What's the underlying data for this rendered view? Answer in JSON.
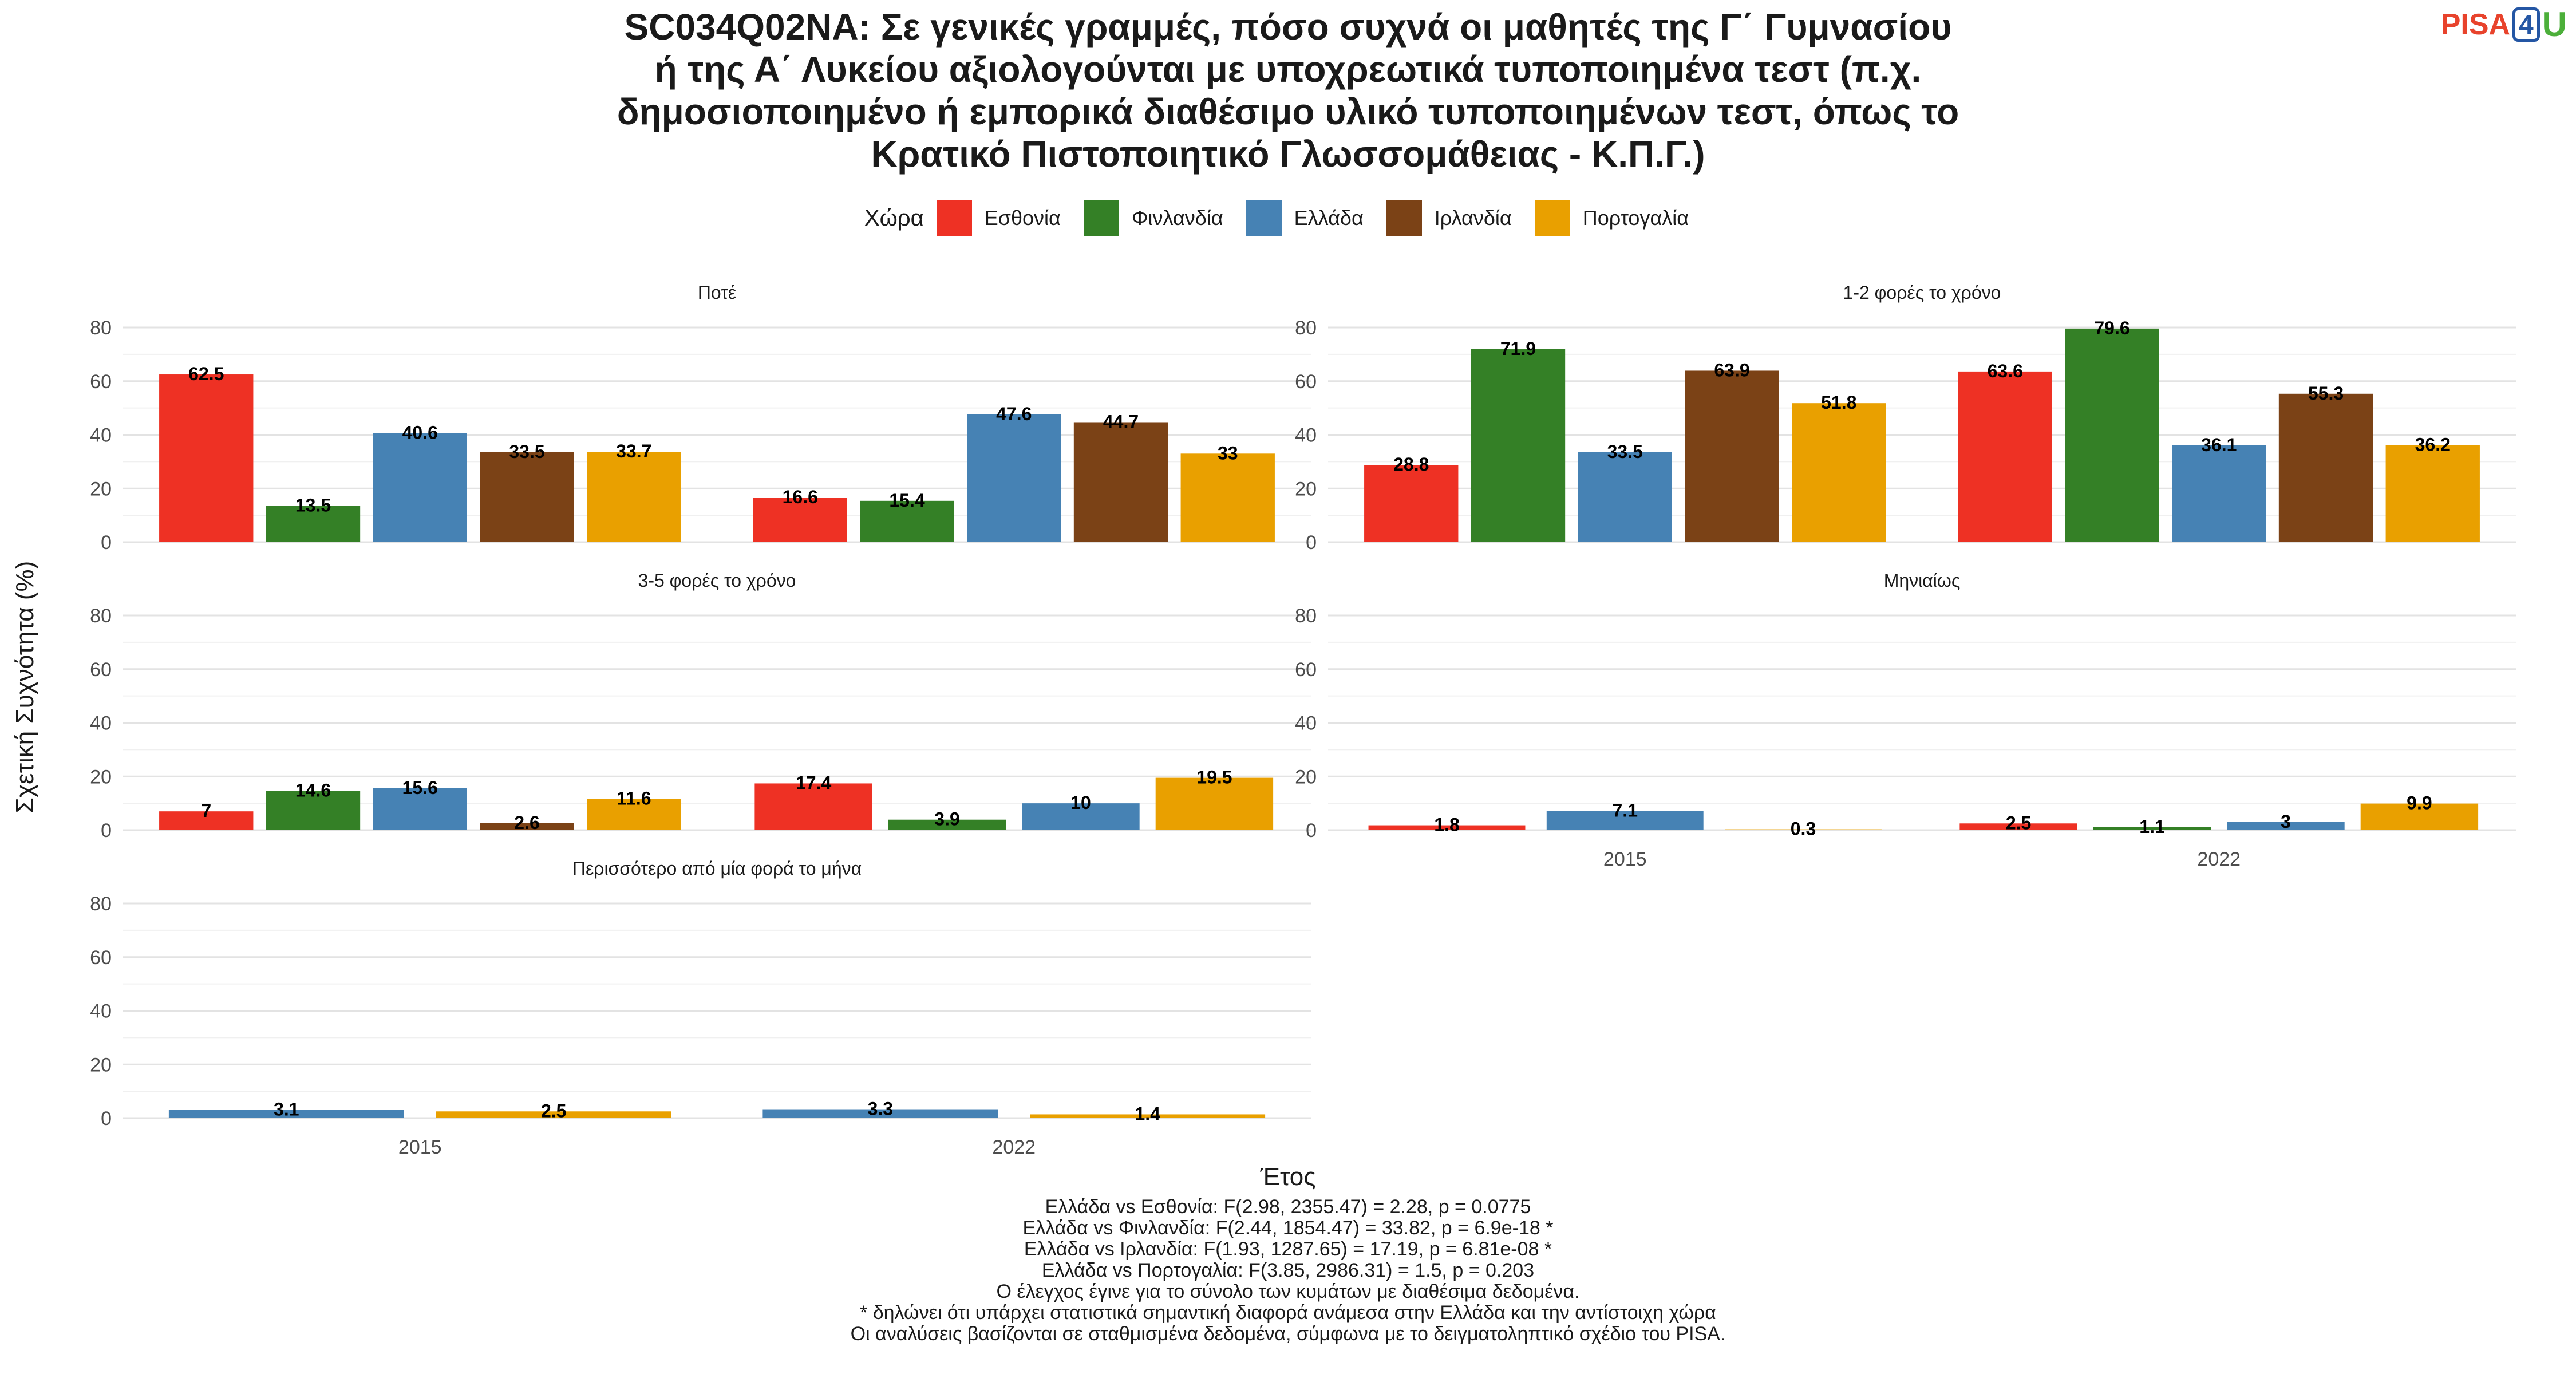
{
  "title_lines": [
    "SC034Q02NA: Σε γενικές γραμμές, πόσο συχνά οι μαθητές της Γ΄ Γυμνασίου",
    "ή της Α΄ Λυκείου αξιολογούνται με υποχρεωτικά τυποποιημένα τεστ (π.χ.",
    "δημοσιοποιημένο ή εμπορικά διαθέσιμο υλικό τυποποιημένων τεστ, όπως το",
    "Κρατικό Πιστοποιητικό Γλωσσομάθειας - Κ.Π.Γ.)"
  ],
  "logo": {
    "text1": "PISA",
    "text2": "4",
    "text3": "U"
  },
  "legend": {
    "title": "Χώρα",
    "items": [
      {
        "name": "Εσθονία",
        "color": "#ee3124"
      },
      {
        "name": "Φινλανδία",
        "color": "#348026"
      },
      {
        "name": "Ελλάδα",
        "color": "#4682b4"
      },
      {
        "name": "Ιρλανδία",
        "color": "#7b4216"
      },
      {
        "name": "Πορτογαλία",
        "color": "#e9a000"
      }
    ]
  },
  "footnotes": [
    "Ελλάδα vs Εσθονία: F(2.98, 2355.47) = 2.28, p = 0.0775",
    "Ελλάδα vs Φινλανδία: F(2.44, 1854.47) = 33.82, p = 6.9e-18 *",
    "Ελλάδα vs Ιρλανδία: F(1.93, 1287.65) = 17.19, p = 6.81e-08 *",
    "Ελλάδα vs Πορτογαλία: F(3.85, 2986.31) = 1.5, p = 0.203",
    "Ο έλεγχος έγινε για το σύνολο των κυμάτων με διαθέσιμα δεδομένα.",
    "* δηλώνει ότι υπάρχει στατιστικά σημαντική διαφορά ανάμεσα στην Ελλάδα και την αντίστοιχη χώρα",
    "Οι αναλύσεις βασίζονται σε σταθμισμένα δεδομένα, σύμφωνα με το δειγματοληπτικό σχέδιο του PISA."
  ],
  "chart_data": {
    "type": "bar",
    "xlabel": "Έτος",
    "ylabel": "Σχετική Συχνότητα (%)",
    "ylim": [
      0,
      80
    ],
    "yticks": [
      0,
      20,
      40,
      60,
      80
    ],
    "categories": [
      "2015",
      "2022"
    ],
    "grid": true,
    "legend_position": "top",
    "series_colors": {
      "Εσθονία": "#ee3124",
      "Φινλανδία": "#348026",
      "Ελλάδα": "#4682b4",
      "Ιρλανδία": "#7b4216",
      "Πορτογαλία": "#e9a000"
    },
    "facets": [
      {
        "title": "Ποτέ",
        "series": [
          {
            "name": "Εσθονία",
            "values": [
              62.5,
              16.6
            ]
          },
          {
            "name": "Φινλανδία",
            "values": [
              13.5,
              15.4
            ]
          },
          {
            "name": "Ελλάδα",
            "values": [
              40.6,
              47.6
            ]
          },
          {
            "name": "Ιρλανδία",
            "values": [
              33.5,
              44.7
            ]
          },
          {
            "name": "Πορτογαλία",
            "values": [
              33.7,
              33
            ]
          }
        ]
      },
      {
        "title": "1-2 φορές το χρόνο",
        "series": [
          {
            "name": "Εσθονία",
            "values": [
              28.8,
              63.6
            ]
          },
          {
            "name": "Φινλανδία",
            "values": [
              71.9,
              79.6
            ]
          },
          {
            "name": "Ελλάδα",
            "values": [
              33.5,
              36.1
            ]
          },
          {
            "name": "Ιρλανδία",
            "values": [
              63.9,
              55.3
            ]
          },
          {
            "name": "Πορτογαλία",
            "values": [
              51.8,
              36.2
            ]
          }
        ]
      },
      {
        "title": "3-5 φορές το χρόνο",
        "series": [
          {
            "name": "Εσθονία",
            "values": [
              7,
              17.4
            ]
          },
          {
            "name": "Φινλανδία",
            "values": [
              14.6,
              3.9
            ]
          },
          {
            "name": "Ελλάδα",
            "values": [
              15.6,
              10
            ]
          },
          {
            "name": "Ιρλανδία",
            "values": [
              2.6,
              null
            ]
          },
          {
            "name": "Πορτογαλία",
            "values": [
              11.6,
              19.5
            ]
          }
        ]
      },
      {
        "title": "Μηνιαίως",
        "series": [
          {
            "name": "Εσθονία",
            "values": [
              1.8,
              2.5
            ]
          },
          {
            "name": "Φινλανδία",
            "values": [
              null,
              1.1
            ]
          },
          {
            "name": "Ελλάδα",
            "values": [
              7.1,
              3
            ]
          },
          {
            "name": "Πορτογαλία",
            "values": [
              0.3,
              9.9
            ]
          }
        ]
      },
      {
        "title": "Περισσότερο από μία φορά το μήνα",
        "series": [
          {
            "name": "Ελλάδα",
            "values": [
              3.1,
              3.3
            ]
          },
          {
            "name": "Πορτογαλία",
            "values": [
              2.5,
              1.4
            ]
          }
        ]
      }
    ]
  }
}
